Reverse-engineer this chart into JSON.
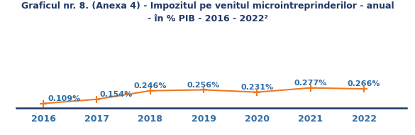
{
  "title_line1": "Graficul nr. 8. (Anexa 4) - Impozitul pe venitul microintreprinderilor - anual",
  "title_line2": "- în % PIB - 2016 - 2022²",
  "years": [
    2016,
    2017,
    2018,
    2019,
    2020,
    2021,
    2022
  ],
  "values": [
    0.109,
    0.154,
    0.246,
    0.256,
    0.231,
    0.277,
    0.266
  ],
  "labels": [
    "0.109%",
    "0.154%",
    "0.246%",
    "0.256%",
    "0.231%",
    "0.277%",
    "0.266%"
  ],
  "line_color": "#F07820",
  "title_color": "#1F3864",
  "label_color": "#2E6DA4",
  "axis_color": "#1F3864",
  "tick_color": "#2E6DA4",
  "background_color": "#ffffff",
  "title_fontsize": 9.0,
  "label_fontsize": 8.0,
  "tick_fontsize": 9.0,
  "ylim": [
    0.06,
    0.38
  ],
  "xlim": [
    2015.5,
    2022.8
  ],
  "label_dx": [
    0.08,
    0.06,
    0.0,
    0.0,
    0.0,
    0.0,
    0.0
  ],
  "label_dy": [
    0.012,
    0.012,
    0.013,
    0.013,
    0.013,
    0.013,
    0.013
  ],
  "label_ha": [
    "left",
    "left",
    "center",
    "center",
    "center",
    "center",
    "center"
  ]
}
